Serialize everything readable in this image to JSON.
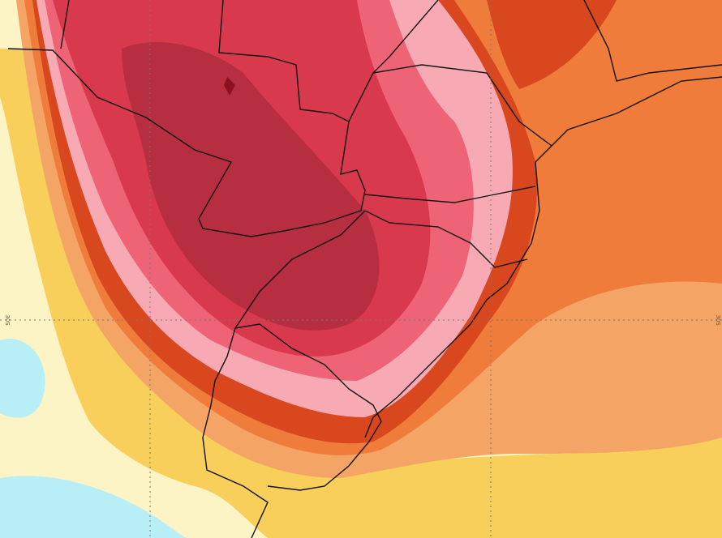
{
  "map": {
    "latitude_labels": [
      "30S",
      "30S"
    ]
  }
}
